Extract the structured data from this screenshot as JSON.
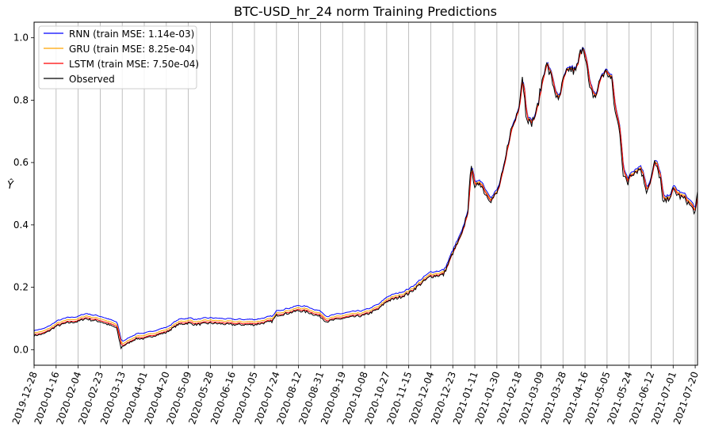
{
  "chart_data": {
    "type": "line",
    "title": "BTC-USD_hr_24 norm Training Predictions",
    "xlabel": "",
    "ylabel": "Ŷ",
    "ylim": [
      -0.05,
      1.05
    ],
    "yticks": [
      0.0,
      0.2,
      0.4,
      0.6,
      0.8,
      1.0
    ],
    "ytick_labels": [
      "0.0",
      "0.2",
      "0.4",
      "0.6",
      "0.8",
      "1.0"
    ],
    "xlim": [
      "2019-12-28",
      "2021-07-22"
    ],
    "xtick_labels": [
      "2019-12-28",
      "2020-01-16",
      "2020-02-04",
      "2020-02-23",
      "2020-03-13",
      "2020-04-01",
      "2020-04-20",
      "2020-05-09",
      "2020-05-28",
      "2020-06-16",
      "2020-07-05",
      "2020-07-24",
      "2020-08-12",
      "2020-08-31",
      "2020-09-19",
      "2020-10-08",
      "2020-10-27",
      "2020-11-15",
      "2020-12-04",
      "2020-12-23",
      "2021-01-11",
      "2021-01-30",
      "2021-02-18",
      "2021-03-09",
      "2021-03-28",
      "2021-04-16",
      "2021-05-05",
      "2021-05-24",
      "2021-06-12",
      "2021-07-01",
      "2021-07-20"
    ],
    "grid": "x",
    "legend_position": "upper-left",
    "series": [
      {
        "name": "RNN (train MSE: 1.14e-03)",
        "color": "#0000ff",
        "offset": 0.018
      },
      {
        "name": "GRU (train MSE: 8.25e-04)",
        "color": "#ffa500",
        "offset": 0.01
      },
      {
        "name": "LSTM (train MSE: 7.50e-04)",
        "color": "#ff0000",
        "offset": 0.004
      },
      {
        "name": "Observed",
        "color": "#000000",
        "offset": 0.0
      }
    ],
    "observed_keypoints": [
      [
        "2019-12-28",
        0.045
      ],
      [
        "2020-01-05",
        0.05
      ],
      [
        "2020-01-10",
        0.06
      ],
      [
        "2020-01-16",
        0.075
      ],
      [
        "2020-01-25",
        0.085
      ],
      [
        "2020-02-04",
        0.09
      ],
      [
        "2020-02-10",
        0.1
      ],
      [
        "2020-02-15",
        0.095
      ],
      [
        "2020-02-23",
        0.09
      ],
      [
        "2020-03-01",
        0.08
      ],
      [
        "2020-03-08",
        0.07
      ],
      [
        "2020-03-12",
        0.005
      ],
      [
        "2020-03-13",
        0.01
      ],
      [
        "2020-03-18",
        0.02
      ],
      [
        "2020-03-25",
        0.035
      ],
      [
        "2020-04-01",
        0.035
      ],
      [
        "2020-04-10",
        0.045
      ],
      [
        "2020-04-20",
        0.055
      ],
      [
        "2020-04-30",
        0.08
      ],
      [
        "2020-05-09",
        0.085
      ],
      [
        "2020-05-15",
        0.08
      ],
      [
        "2020-05-28",
        0.085
      ],
      [
        "2020-06-16",
        0.08
      ],
      [
        "2020-07-05",
        0.08
      ],
      [
        "2020-07-20",
        0.09
      ],
      [
        "2020-07-24",
        0.11
      ],
      [
        "2020-08-01",
        0.115
      ],
      [
        "2020-08-12",
        0.125
      ],
      [
        "2020-08-20",
        0.12
      ],
      [
        "2020-08-31",
        0.105
      ],
      [
        "2020-09-05",
        0.09
      ],
      [
        "2020-09-19",
        0.1
      ],
      [
        "2020-10-08",
        0.11
      ],
      [
        "2020-10-20",
        0.13
      ],
      [
        "2020-10-27",
        0.155
      ],
      [
        "2020-11-05",
        0.165
      ],
      [
        "2020-11-15",
        0.18
      ],
      [
        "2020-11-25",
        0.21
      ],
      [
        "2020-12-04",
        0.235
      ],
      [
        "2020-12-15",
        0.24
      ],
      [
        "2020-12-23",
        0.31
      ],
      [
        "2020-12-31",
        0.37
      ],
      [
        "2021-01-05",
        0.45
      ],
      [
        "2021-01-08",
        0.6
      ],
      [
        "2021-01-11",
        0.51
      ],
      [
        "2021-01-15",
        0.54
      ],
      [
        "2021-01-20",
        0.5
      ],
      [
        "2021-01-25",
        0.48
      ],
      [
        "2021-01-30",
        0.5
      ],
      [
        "2021-02-05",
        0.58
      ],
      [
        "2021-02-10",
        0.69
      ],
      [
        "2021-02-15",
        0.74
      ],
      [
        "2021-02-18",
        0.79
      ],
      [
        "2021-02-21",
        0.88
      ],
      [
        "2021-02-24",
        0.76
      ],
      [
        "2021-02-28",
        0.72
      ],
      [
        "2021-03-05",
        0.76
      ],
      [
        "2021-03-09",
        0.84
      ],
      [
        "2021-03-13",
        0.92
      ],
      [
        "2021-03-18",
        0.87
      ],
      [
        "2021-03-24",
        0.79
      ],
      [
        "2021-03-28",
        0.86
      ],
      [
        "2021-04-02",
        0.9
      ],
      [
        "2021-04-08",
        0.89
      ],
      [
        "2021-04-14",
        0.98
      ],
      [
        "2021-04-16",
        0.95
      ],
      [
        "2021-04-20",
        0.83
      ],
      [
        "2021-04-25",
        0.81
      ],
      [
        "2021-04-30",
        0.88
      ],
      [
        "2021-05-05",
        0.89
      ],
      [
        "2021-05-09",
        0.86
      ],
      [
        "2021-05-12",
        0.76
      ],
      [
        "2021-05-16",
        0.7
      ],
      [
        "2021-05-19",
        0.56
      ],
      [
        "2021-05-23",
        0.53
      ],
      [
        "2021-05-24",
        0.56
      ],
      [
        "2021-05-28",
        0.57
      ],
      [
        "2021-06-03",
        0.58
      ],
      [
        "2021-06-08",
        0.51
      ],
      [
        "2021-06-12",
        0.55
      ],
      [
        "2021-06-15",
        0.6
      ],
      [
        "2021-06-20",
        0.55
      ],
      [
        "2021-06-22",
        0.47
      ],
      [
        "2021-06-26",
        0.48
      ],
      [
        "2021-07-01",
        0.51
      ],
      [
        "2021-07-07",
        0.49
      ],
      [
        "2021-07-12",
        0.48
      ],
      [
        "2021-07-18",
        0.45
      ],
      [
        "2021-07-20",
        0.44
      ],
      [
        "2021-07-22",
        0.5
      ]
    ]
  }
}
